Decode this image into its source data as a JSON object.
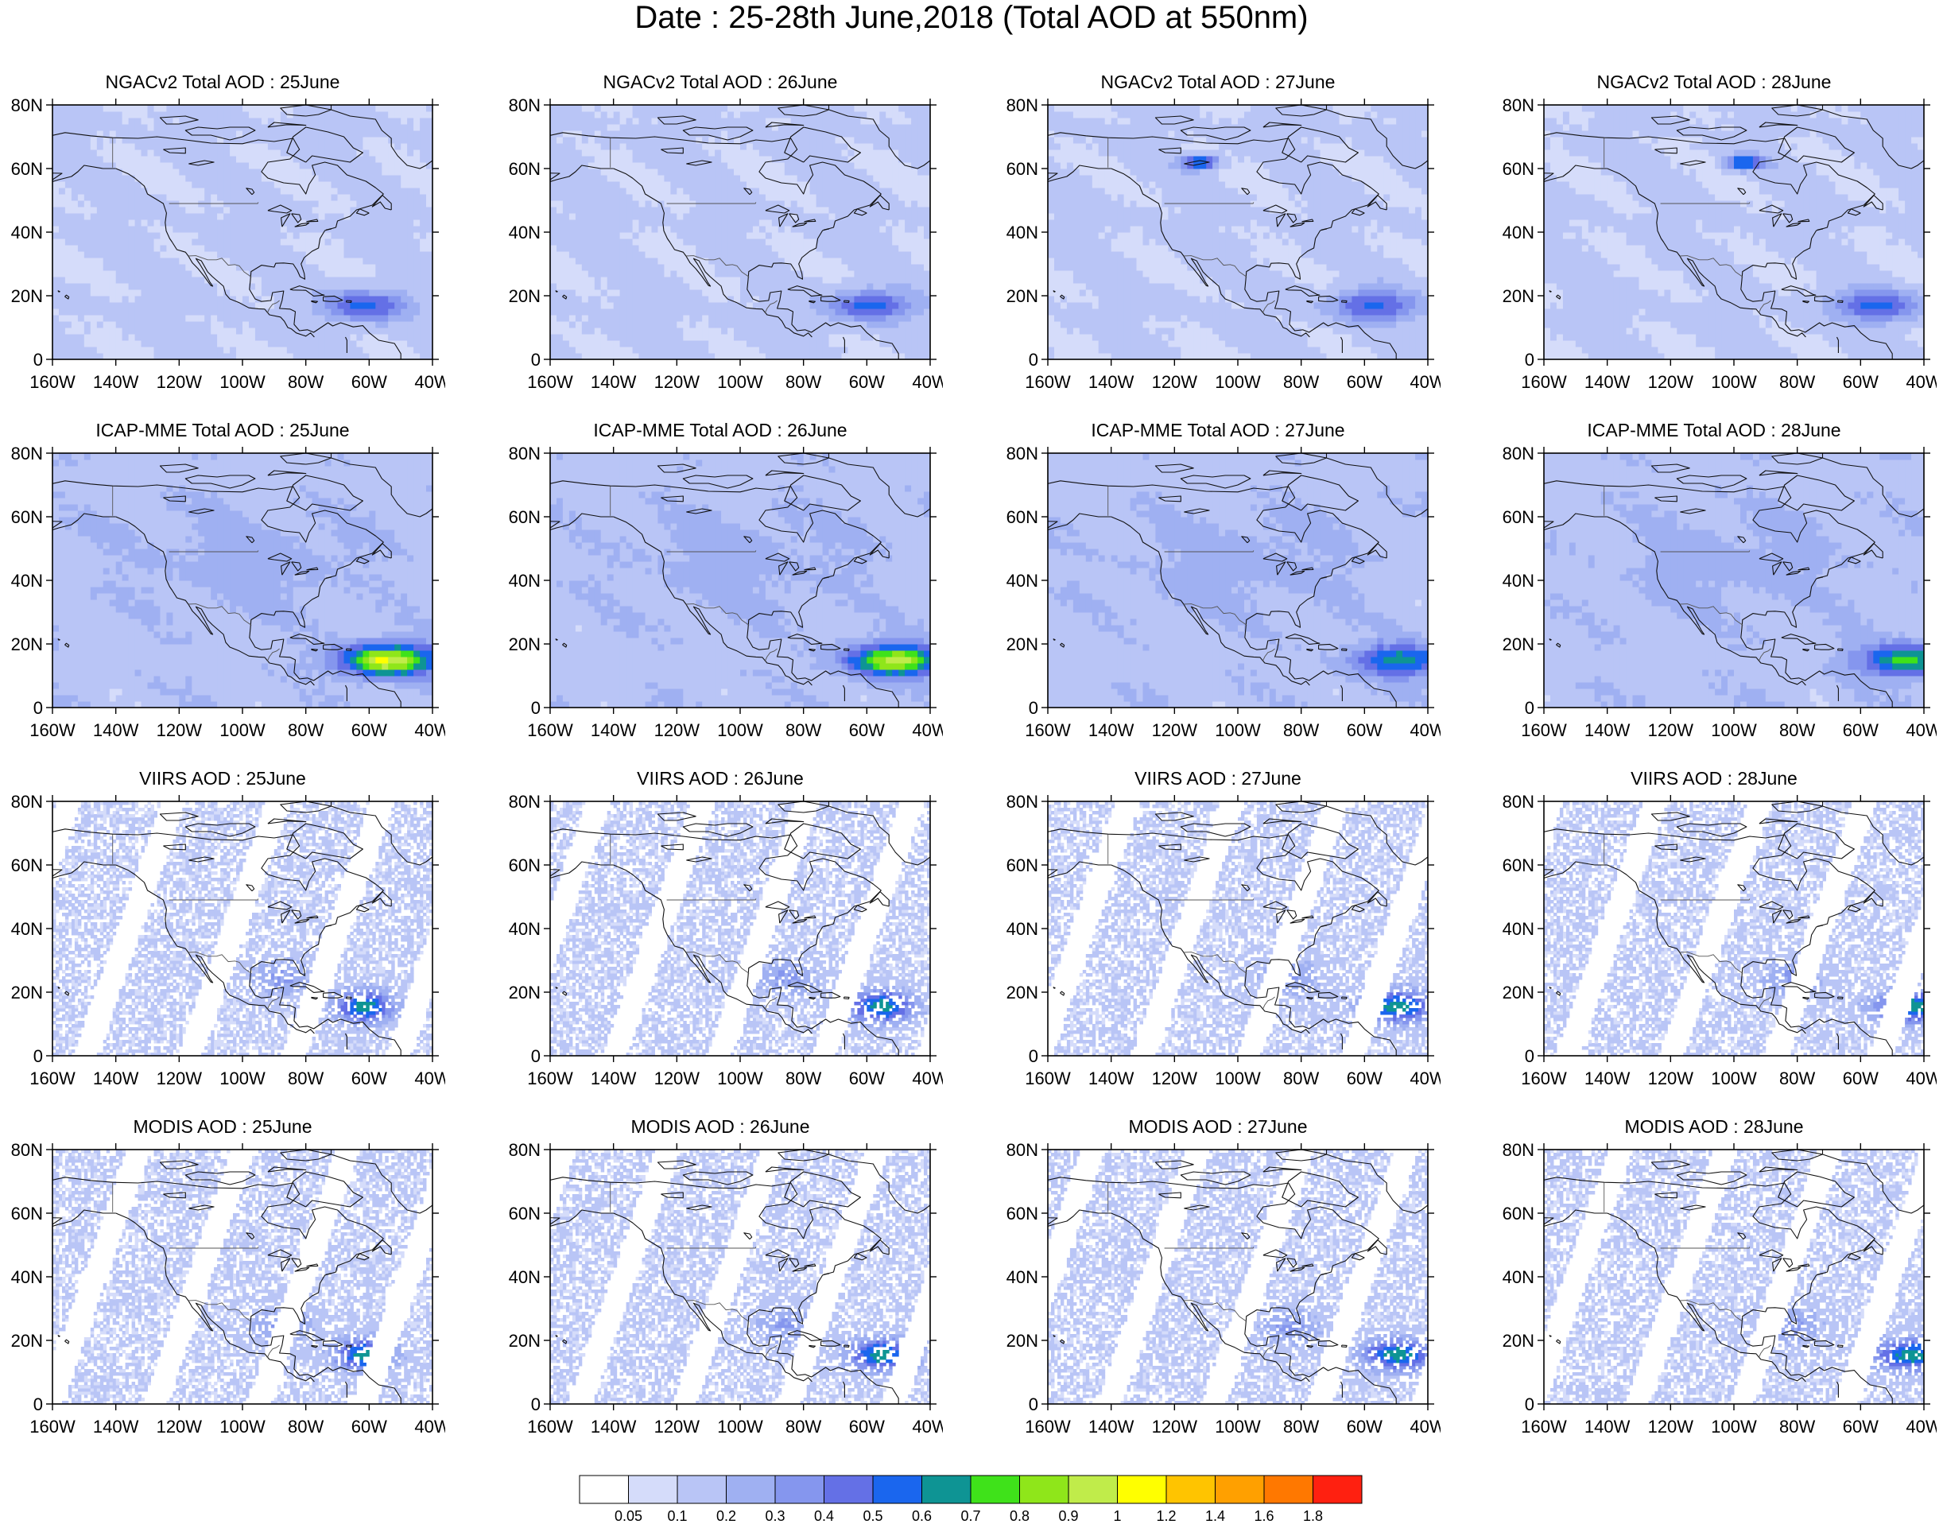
{
  "title": "Date : 25-28th June,2018 (Total AOD at 550nm)",
  "axis": {
    "lat_labels": [
      "0",
      "20N",
      "40N",
      "60N",
      "80N"
    ],
    "lon_labels": [
      "160W",
      "140W",
      "120W",
      "100W",
      "80W",
      "60W",
      "40W"
    ]
  },
  "map_extent": {
    "lon_min": -160,
    "lon_max": -40,
    "lat_min": 0,
    "lat_max": 80
  },
  "rows": [
    {
      "name": "NGACv2",
      "titles": [
        "NGACv2 Total AOD : 25June",
        "NGACv2 Total AOD : 26June",
        "NGACv2 Total AOD : 27June",
        "NGACv2 Total AOD : 28June"
      ]
    },
    {
      "name": "ICAP-MME",
      "titles": [
        "ICAP-MME Total AOD : 25June",
        "ICAP-MME Total AOD : 26June",
        "ICAP-MME Total AOD : 27June",
        "ICAP-MME Total AOD : 28June"
      ]
    },
    {
      "name": "VIIRS",
      "titles": [
        "VIIRS AOD : 25June",
        "VIIRS AOD : 26June",
        "VIIRS AOD : 27June",
        "VIIRS AOD : 28June"
      ]
    },
    {
      "name": "MODIS",
      "titles": [
        "MODIS AOD : 25June",
        "MODIS AOD : 26June",
        "MODIS AOD : 27June",
        "MODIS AOD : 28June"
      ]
    }
  ],
  "colorbar": {
    "labels": [
      "0.05",
      "0.1",
      "0.2",
      "0.3",
      "0.4",
      "0.5",
      "0.6",
      "0.7",
      "0.8",
      "0.9",
      "1",
      "1.2",
      "1.4",
      "1.6",
      "1.8"
    ],
    "colors": [
      "#ffffff",
      "#d5dcfa",
      "#b9c5f6",
      "#9fb0f2",
      "#8596ee",
      "#6470e6",
      "#1a66ee",
      "#0e9494",
      "#3fe21a",
      "#8fe61a",
      "#c0ec4a",
      "#ffff00",
      "#ffc400",
      "#ffa000",
      "#ff7800",
      "#ff2010"
    ]
  }
}
